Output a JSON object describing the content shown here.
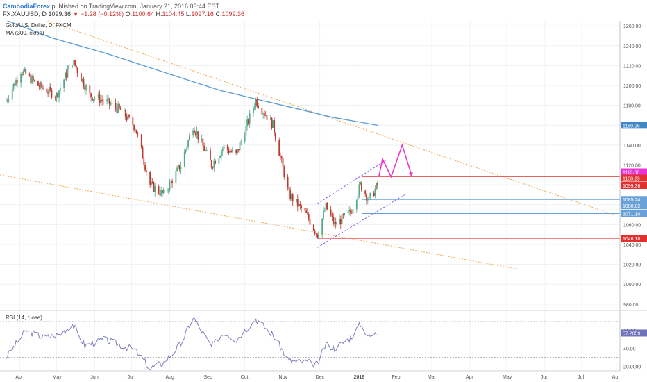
{
  "header": {
    "author": "CambodiaForex",
    "published": "published on TradingView.com, January 21, 2016 03:44 EST",
    "symbol": "FX:XAUUSD, D",
    "last": "1099.36",
    "change": "−1.28 (−0.12%)",
    "o_label": "O:",
    "o_val": "1100.64",
    "h_label": "H:",
    "h_val": "1104.45",
    "l_label": "L:",
    "l_val": "1097.16",
    "c_label": "C:",
    "c_val": "1099.36"
  },
  "legend": {
    "title": "Gold/U.S. Dollar, D, FXCM",
    "ma": "MA (300, close)",
    "rsi": "RSI (14, close)"
  },
  "colors": {
    "up": "#53a98a",
    "down": "#c0392b",
    "ma": "#5a9bd4",
    "rsi": "#7f7fbf",
    "trend": "#f0a44c",
    "channel": "#8a5cf5",
    "projection": "#e834d4",
    "resistance": "#e03030",
    "support": "#6aa0d8"
  },
  "price_axis": {
    "ticks": [
      "1260.00",
      "1240.00",
      "1220.00",
      "1200.00",
      "1180.00",
      "1160.00",
      "1140.00",
      "1120.00",
      "1100.00",
      "1080.00",
      "1060.00",
      "1040.00",
      "1020.00",
      "1000.00",
      "980.00"
    ],
    "markers": [
      {
        "value": 1159.95,
        "label": "1159.95",
        "color": "#3f87c5"
      },
      {
        "value": 1113.0,
        "label": "1113.00",
        "color": "#e834d4"
      },
      {
        "value": 1108.29,
        "label": "1108.29",
        "color": "#e03030"
      },
      {
        "value": 1099.36,
        "label": "1099.36",
        "color": "#e03030"
      },
      {
        "value": 1085.24,
        "label": "1085.24",
        "color": "#6aa0d8"
      },
      {
        "value": 1080.02,
        "label": "1080.02",
        "color": "#6aa0d8"
      },
      {
        "value": 1071.1,
        "label": "1071.10",
        "color": "#6aa0d8"
      },
      {
        "value": 1046.18,
        "label": "1046.18",
        "color": "#e03030"
      }
    ]
  },
  "rsi_axis": {
    "ticks": [
      "60.00",
      "40.00",
      "20.0000"
    ],
    "current": "57.2059"
  },
  "time_axis": {
    "labels": [
      "Apr",
      "May",
      "Jun",
      "Jul",
      "Aug",
      "Sep",
      "Oct",
      "Nov",
      "Dec",
      "2016",
      "Feb",
      "Mar",
      "Apr",
      "May",
      "Jun",
      "Jul",
      "Au"
    ]
  },
  "chart_data": {
    "type": "candlestick",
    "symbol": "FX:XAUUSD",
    "timeframe": "D",
    "ylim": [
      975,
      1265
    ],
    "rsi_ylim": [
      15,
      80
    ],
    "ma_300": [
      {
        "date": "2015-03-20",
        "value": 1268
      },
      {
        "date": "2015-05-01",
        "value": 1248
      },
      {
        "date": "2015-06-15",
        "value": 1232
      },
      {
        "date": "2015-08-01",
        "value": 1213
      },
      {
        "date": "2015-09-15",
        "value": 1195
      },
      {
        "date": "2015-10-15",
        "value": 1186
      },
      {
        "date": "2015-11-15",
        "value": 1177
      },
      {
        "date": "2015-12-15",
        "value": 1168
      },
      {
        "date": "2016-01-21",
        "value": 1159.95
      }
    ],
    "close_path": [
      {
        "date": "2015-03-25",
        "value": 1185
      },
      {
        "date": "2015-04-06",
        "value": 1215
      },
      {
        "date": "2015-04-20",
        "value": 1200
      },
      {
        "date": "2015-05-05",
        "value": 1190
      },
      {
        "date": "2015-05-18",
        "value": 1225
      },
      {
        "date": "2015-06-01",
        "value": 1190
      },
      {
        "date": "2015-06-15",
        "value": 1183
      },
      {
        "date": "2015-06-26",
        "value": 1175
      },
      {
        "date": "2015-07-08",
        "value": 1158
      },
      {
        "date": "2015-07-20",
        "value": 1100
      },
      {
        "date": "2015-07-31",
        "value": 1090
      },
      {
        "date": "2015-08-14",
        "value": 1120
      },
      {
        "date": "2015-08-24",
        "value": 1160
      },
      {
        "date": "2015-09-08",
        "value": 1120
      },
      {
        "date": "2015-09-18",
        "value": 1138
      },
      {
        "date": "2015-09-28",
        "value": 1130
      },
      {
        "date": "2015-10-14",
        "value": 1185
      },
      {
        "date": "2015-10-28",
        "value": 1160
      },
      {
        "date": "2015-11-10",
        "value": 1090
      },
      {
        "date": "2015-11-24",
        "value": 1070
      },
      {
        "date": "2015-12-03",
        "value": 1050
      },
      {
        "date": "2015-12-10",
        "value": 1078
      },
      {
        "date": "2015-12-17",
        "value": 1060
      },
      {
        "date": "2015-12-30",
        "value": 1072
      },
      {
        "date": "2016-01-07",
        "value": 1100
      },
      {
        "date": "2016-01-14",
        "value": 1085
      },
      {
        "date": "2016-01-21",
        "value": 1099.36
      }
    ],
    "rsi": [
      {
        "date": "2015-03-25",
        "value": 30
      },
      {
        "date": "2015-04-10",
        "value": 60
      },
      {
        "date": "2015-04-25",
        "value": 52
      },
      {
        "date": "2015-05-08",
        "value": 56
      },
      {
        "date": "2015-05-18",
        "value": 67
      },
      {
        "date": "2015-05-28",
        "value": 43
      },
      {
        "date": "2015-06-12",
        "value": 50
      },
      {
        "date": "2015-06-26",
        "value": 44
      },
      {
        "date": "2015-07-08",
        "value": 38
      },
      {
        "date": "2015-07-20",
        "value": 18
      },
      {
        "date": "2015-07-31",
        "value": 24
      },
      {
        "date": "2015-08-14",
        "value": 45
      },
      {
        "date": "2015-08-24",
        "value": 75
      },
      {
        "date": "2015-09-08",
        "value": 42
      },
      {
        "date": "2015-09-18",
        "value": 58
      },
      {
        "date": "2015-09-28",
        "value": 50
      },
      {
        "date": "2015-10-14",
        "value": 73
      },
      {
        "date": "2015-10-28",
        "value": 55
      },
      {
        "date": "2015-11-10",
        "value": 26
      },
      {
        "date": "2015-11-24",
        "value": 25
      },
      {
        "date": "2015-12-03",
        "value": 22
      },
      {
        "date": "2015-12-10",
        "value": 45
      },
      {
        "date": "2015-12-17",
        "value": 40
      },
      {
        "date": "2015-12-30",
        "value": 52
      },
      {
        "date": "2016-01-07",
        "value": 67
      },
      {
        "date": "2016-01-14",
        "value": 53
      },
      {
        "date": "2016-01-21",
        "value": 57.2059
      }
    ],
    "levels": [
      {
        "value": 1108.29,
        "from": "2016-01-08",
        "to": "axis",
        "kind": "resistance"
      },
      {
        "value": 1085.24,
        "from": "2016-01-08",
        "to": "axis",
        "kind": "support"
      },
      {
        "value": 1071.1,
        "from": "2016-01-08",
        "to": "axis",
        "kind": "support"
      },
      {
        "value": 1046.18,
        "from": "2015-12-03",
        "to": "axis",
        "kind": "support"
      }
    ],
    "trendlines": [
      {
        "from": {
          "date": "2015-04-15",
          "value": 1270
        },
        "to": {
          "date": "2016-07-31",
          "value": 1070
        },
        "kind": "upper-wedge"
      },
      {
        "from": {
          "date": "2015-03-20",
          "value": 1110
        },
        "to": {
          "date": "2016-05-15",
          "value": 1015
        },
        "kind": "lower-wedge"
      }
    ],
    "channel": {
      "upper": [
        {
          "date": "2015-12-03",
          "value": 1081
        },
        {
          "date": "2016-01-28",
          "value": 1125
        }
      ],
      "lower": [
        {
          "date": "2015-12-03",
          "value": 1037
        },
        {
          "date": "2016-02-12",
          "value": 1090
        }
      ]
    },
    "projection": [
      {
        "date": "2016-01-22",
        "value": 1108
      },
      {
        "date": "2016-01-25",
        "value": 1126
      },
      {
        "date": "2016-02-01",
        "value": 1108
      },
      {
        "date": "2016-02-10",
        "value": 1140
      },
      {
        "date": "2016-02-18",
        "value": 1108
      }
    ]
  }
}
